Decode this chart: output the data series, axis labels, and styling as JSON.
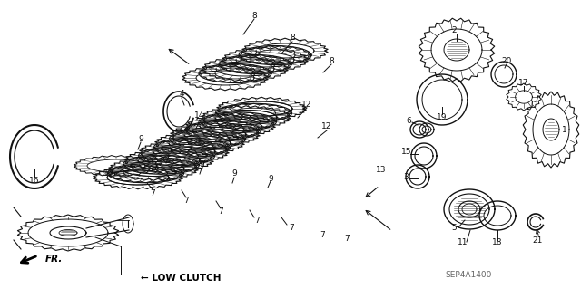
{
  "bg_color": "#ffffff",
  "diagram_code": "SEP4A1400",
  "label": "LOW CLUTCH",
  "fr_label": "FR.",
  "line_color": "#111111",
  "gray_color": "#888888"
}
